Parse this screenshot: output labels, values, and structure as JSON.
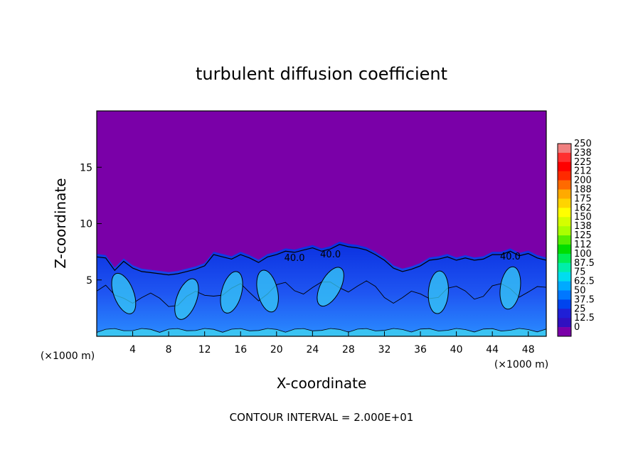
{
  "chart_data": {
    "type": "heatmap",
    "title": "turbulent diffusion coefficient",
    "xlabel": "X-coordinate",
    "ylabel": "Z-coordinate",
    "x_unit_left": "(×1000 m)",
    "x_unit_right": "(×1000 m)",
    "xlim": [
      0,
      50
    ],
    "ylim": [
      0,
      20
    ],
    "x_ticks": [
      4,
      8,
      12,
      16,
      20,
      24,
      28,
      32,
      36,
      40,
      44,
      48
    ],
    "y_ticks": [
      5,
      10,
      15
    ],
    "colorbar_levels": [
      "250",
      "238",
      "225",
      "212",
      "200",
      "188",
      "175",
      "162",
      "150",
      "138",
      "125",
      "112",
      "100",
      "87.5",
      "75",
      "62.5",
      "50",
      "37.5",
      "25",
      "12.5",
      "0"
    ],
    "colorbar_colors": [
      "#f08080",
      "#ff3030",
      "#ff0000",
      "#ff2a00",
      "#ff6a00",
      "#ffaa00",
      "#ffd400",
      "#ffff00",
      "#d4ff00",
      "#aaff00",
      "#55ee00",
      "#00dd00",
      "#00ee55",
      "#00eeaa",
      "#00ddee",
      "#00aaff",
      "#0077ff",
      "#0044ee",
      "#1f1fd6",
      "#3010c0",
      "#7a00a8"
    ],
    "contour_labels": [
      "40.0",
      "40.0",
      "40.0"
    ],
    "annotation": "CONTOUR INTERVAL = 2.000E+01",
    "background_value_color": "#7a00a8",
    "turbulent_layer_top": [
      [
        0,
        7.3
      ],
      [
        1,
        7.2
      ],
      [
        2,
        6.1
      ],
      [
        3,
        6.9
      ],
      [
        4,
        6.3
      ],
      [
        5,
        6.0
      ],
      [
        6,
        5.9
      ],
      [
        7,
        5.8
      ],
      [
        8,
        5.7
      ],
      [
        9,
        5.8
      ],
      [
        10,
        6.0
      ],
      [
        11,
        6.2
      ],
      [
        12,
        6.5
      ],
      [
        13,
        7.5
      ],
      [
        14,
        7.3
      ],
      [
        15,
        7.1
      ],
      [
        16,
        7.5
      ],
      [
        17,
        7.2
      ],
      [
        18,
        6.8
      ],
      [
        19,
        7.3
      ],
      [
        20,
        7.5
      ],
      [
        21,
        7.8
      ],
      [
        22,
        7.7
      ],
      [
        23,
        7.9
      ],
      [
        24,
        8.1
      ],
      [
        25,
        7.8
      ],
      [
        26,
        8.0
      ],
      [
        27,
        8.4
      ],
      [
        28,
        8.2
      ],
      [
        29,
        8.1
      ],
      [
        30,
        7.9
      ],
      [
        31,
        7.5
      ],
      [
        32,
        7.0
      ],
      [
        33,
        6.3
      ],
      [
        34,
        6.0
      ],
      [
        35,
        6.2
      ],
      [
        36,
        6.5
      ],
      [
        37,
        7.0
      ],
      [
        38,
        7.1
      ],
      [
        39,
        7.3
      ],
      [
        40,
        7.0
      ],
      [
        41,
        7.2
      ],
      [
        42,
        7.0
      ],
      [
        43,
        7.1
      ],
      [
        44,
        7.5
      ],
      [
        45,
        7.5
      ],
      [
        46,
        7.8
      ],
      [
        47,
        7.4
      ],
      [
        48,
        7.6
      ],
      [
        49,
        7.2
      ],
      [
        50,
        7.0
      ]
    ]
  }
}
